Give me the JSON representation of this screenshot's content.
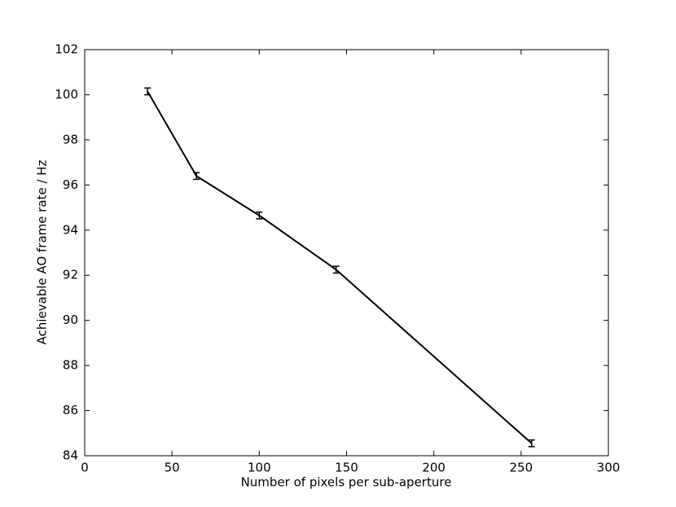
{
  "chart_data": {
    "type": "line",
    "x_label": "Number of pixels per sub-aperture",
    "y_label": "Achievable AO frame rate / Hz",
    "x": [
      36,
      64,
      100,
      144,
      256
    ],
    "series": [
      {
        "color": "#000000",
        "values": [
          100.15,
          96.4,
          94.65,
          92.25,
          84.55
        ],
        "errors": [
          0.15,
          0.15,
          0.15,
          0.15,
          0.15
        ]
      }
    ],
    "xlim": [
      0,
      300
    ],
    "xticks": [
      0,
      50,
      100,
      150,
      200,
      250,
      300
    ],
    "ylim": [
      84,
      102
    ],
    "yticks": [
      84,
      86,
      88,
      90,
      92,
      94,
      96,
      98,
      100,
      102
    ],
    "grid": false
  }
}
